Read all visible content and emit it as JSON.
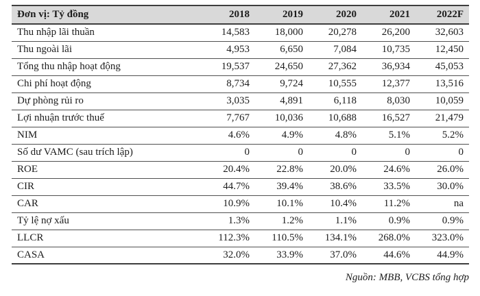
{
  "table": {
    "unit_header": "Đơn vị: Tỷ đồng",
    "year_headers": [
      "2018",
      "2019",
      "2020",
      "2021",
      "2022F"
    ],
    "rows": [
      {
        "label": "Thu nhập lãi thuần",
        "values": [
          "14,583",
          "18,000",
          "20,278",
          "26,200",
          "32,603"
        ]
      },
      {
        "label": "Thu ngoài lãi",
        "values": [
          "4,953",
          "6,650",
          "7,084",
          "10,735",
          "12,450"
        ]
      },
      {
        "label": "Tổng thu nhập hoạt động",
        "values": [
          "19,537",
          "24,650",
          "27,362",
          "36,934",
          "45,053"
        ]
      },
      {
        "label": "Chi phí hoạt động",
        "values": [
          "8,734",
          "9,724",
          "10,555",
          "12,377",
          "13,516"
        ]
      },
      {
        "label": "Dự phòng rủi ro",
        "values": [
          "3,035",
          "4,891",
          "6,118",
          "8,030",
          "10,059"
        ]
      },
      {
        "label": "Lợi nhuận trước thuế",
        "values": [
          "7,767",
          "10,036",
          "10,688",
          "16,527",
          "21,479"
        ]
      },
      {
        "label": "NIM",
        "values": [
          "4.6%",
          "4.9%",
          "4.8%",
          "5.1%",
          "5.2%"
        ]
      },
      {
        "label": "Số dư VAMC (sau trích lập)",
        "values": [
          "0",
          "0",
          "0",
          "0",
          "0"
        ]
      },
      {
        "label": "ROE",
        "values": [
          "20.4%",
          "22.8%",
          "20.0%",
          "24.6%",
          "26.0%"
        ]
      },
      {
        "label": "CIR",
        "values": [
          "44.7%",
          "39.4%",
          "38.6%",
          "33.5%",
          "30.0%"
        ]
      },
      {
        "label": "CAR",
        "values": [
          "10.9%",
          "10.1%",
          "10.4%",
          "11.2%",
          "na"
        ]
      },
      {
        "label": "Tỷ lệ nợ xấu",
        "values": [
          "1.3%",
          "1.2%",
          "1.1%",
          "0.9%",
          "0.9%"
        ]
      },
      {
        "label": "LLCR",
        "values": [
          "112.3%",
          "110.5%",
          "134.1%",
          "268.0%",
          "323.0%"
        ]
      },
      {
        "label": "CASA",
        "values": [
          "32.0%",
          "33.9%",
          "37.0%",
          "44.6%",
          "44.9%"
        ]
      }
    ],
    "source_note": "Nguồn: MBB, VCBS tổng hợp"
  },
  "colors": {
    "header_bg": "#d9d9d9",
    "border_dark": "#3d3d3d",
    "row_line": "#4f4f4f",
    "text": "#1c1c1c"
  }
}
